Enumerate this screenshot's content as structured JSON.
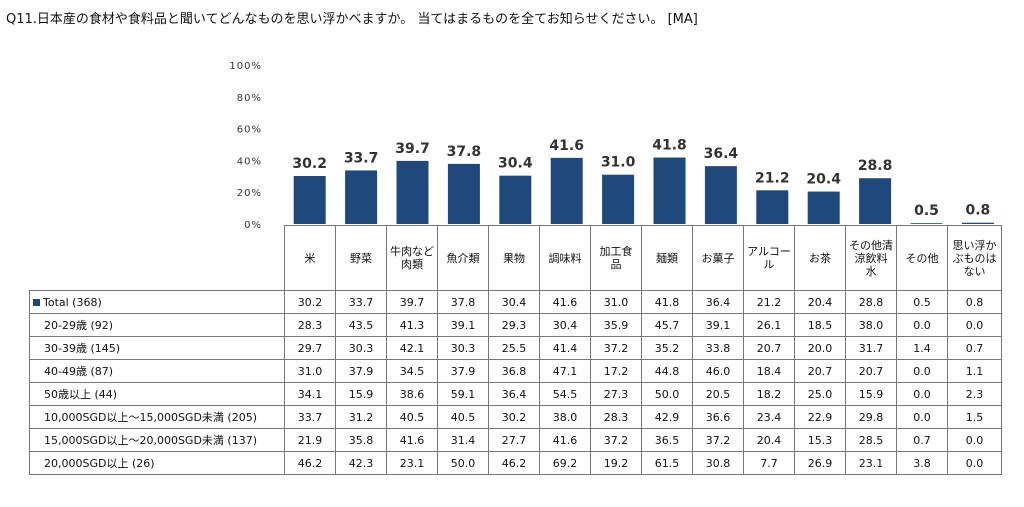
{
  "question": "Q11.日本産の食材や食料品と聞いてどんなものを思い浮かべますか。 当てはまるものを全てお知らせください。 [MA]",
  "chart_data": {
    "type": "bar",
    "categories": [
      "米",
      "野菜",
      "牛肉など肉類",
      "魚介類",
      "果物",
      "調味料",
      "加工食品",
      "麺類",
      "お菓子",
      "アルコール",
      "お茶",
      "その他清涼飲料水",
      "その他",
      "思い浮かぶものはない"
    ],
    "values": [
      30.2,
      33.7,
      39.7,
      37.8,
      30.4,
      41.6,
      31.0,
      41.8,
      36.4,
      21.2,
      20.4,
      28.8,
      0.5,
      0.8
    ],
    "value_labels": [
      "30.2",
      "33.7",
      "39.7",
      "37.8",
      "30.4",
      "41.6",
      "31.0",
      "41.8",
      "36.4",
      "21.2",
      "20.4",
      "28.8",
      "0.5",
      "0.8"
    ],
    "ylim": [
      0,
      100
    ],
    "yticks": [
      "0%",
      "20%",
      "40%",
      "60%",
      "80%",
      "100%"
    ],
    "bar_color": "#1f497d",
    "grid": false
  },
  "table": {
    "columns": [
      [
        "米"
      ],
      [
        "野菜"
      ],
      [
        "牛肉など",
        "肉類"
      ],
      [
        "魚介類"
      ],
      [
        "果物"
      ],
      [
        "調味料"
      ],
      [
        "加工食",
        "品"
      ],
      [
        "麺類"
      ],
      [
        "お菓子"
      ],
      [
        "アルコー",
        "ル"
      ],
      [
        "お茶"
      ],
      [
        "その他清",
        "涼飲料",
        "水"
      ],
      [
        "その他"
      ],
      [
        "思い浮か",
        "ぶものは",
        "ない"
      ]
    ],
    "rows": [
      {
        "label": "Total (368)",
        "values": [
          "30.2",
          "33.7",
          "39.7",
          "37.8",
          "30.4",
          "41.6",
          "31.0",
          "41.8",
          "36.4",
          "21.2",
          "20.4",
          "28.8",
          "0.5",
          "0.8"
        ]
      },
      {
        "label": "20-29歳 (92)",
        "values": [
          "28.3",
          "43.5",
          "41.3",
          "39.1",
          "29.3",
          "30.4",
          "35.9",
          "45.7",
          "39.1",
          "26.1",
          "18.5",
          "38.0",
          "0.0",
          "0.0"
        ]
      },
      {
        "label": "30-39歳 (145)",
        "values": [
          "29.7",
          "30.3",
          "42.1",
          "30.3",
          "25.5",
          "41.4",
          "37.2",
          "35.2",
          "33.8",
          "20.7",
          "20.0",
          "31.7",
          "1.4",
          "0.7"
        ]
      },
      {
        "label": "40-49歳 (87)",
        "values": [
          "31.0",
          "37.9",
          "34.5",
          "37.9",
          "36.8",
          "47.1",
          "17.2",
          "44.8",
          "46.0",
          "18.4",
          "20.7",
          "20.7",
          "0.0",
          "1.1"
        ]
      },
      {
        "label": "50歳以上 (44)",
        "values": [
          "34.1",
          "15.9",
          "38.6",
          "59.1",
          "36.4",
          "54.5",
          "27.3",
          "50.0",
          "20.5",
          "18.2",
          "25.0",
          "15.9",
          "0.0",
          "2.3"
        ]
      },
      {
        "label": "10,000SGD以上～15,000SGD未満 (205)",
        "values": [
          "33.7",
          "31.2",
          "40.5",
          "40.5",
          "30.2",
          "38.0",
          "28.3",
          "42.9",
          "36.6",
          "23.4",
          "22.9",
          "29.8",
          "0.0",
          "1.5"
        ]
      },
      {
        "label": "15,000SGD以上～20,000SGD未満 (137)",
        "values": [
          "21.9",
          "35.8",
          "41.6",
          "31.4",
          "27.7",
          "41.6",
          "37.2",
          "36.5",
          "37.2",
          "20.4",
          "15.3",
          "28.5",
          "0.7",
          "0.0"
        ]
      },
      {
        "label": "20,000SGD以上 (26)",
        "values": [
          "46.2",
          "42.3",
          "23.1",
          "50.0",
          "46.2",
          "69.2",
          "19.2",
          "61.5",
          "30.8",
          "7.7",
          "26.9",
          "23.1",
          "3.8",
          "0.0"
        ]
      }
    ]
  }
}
